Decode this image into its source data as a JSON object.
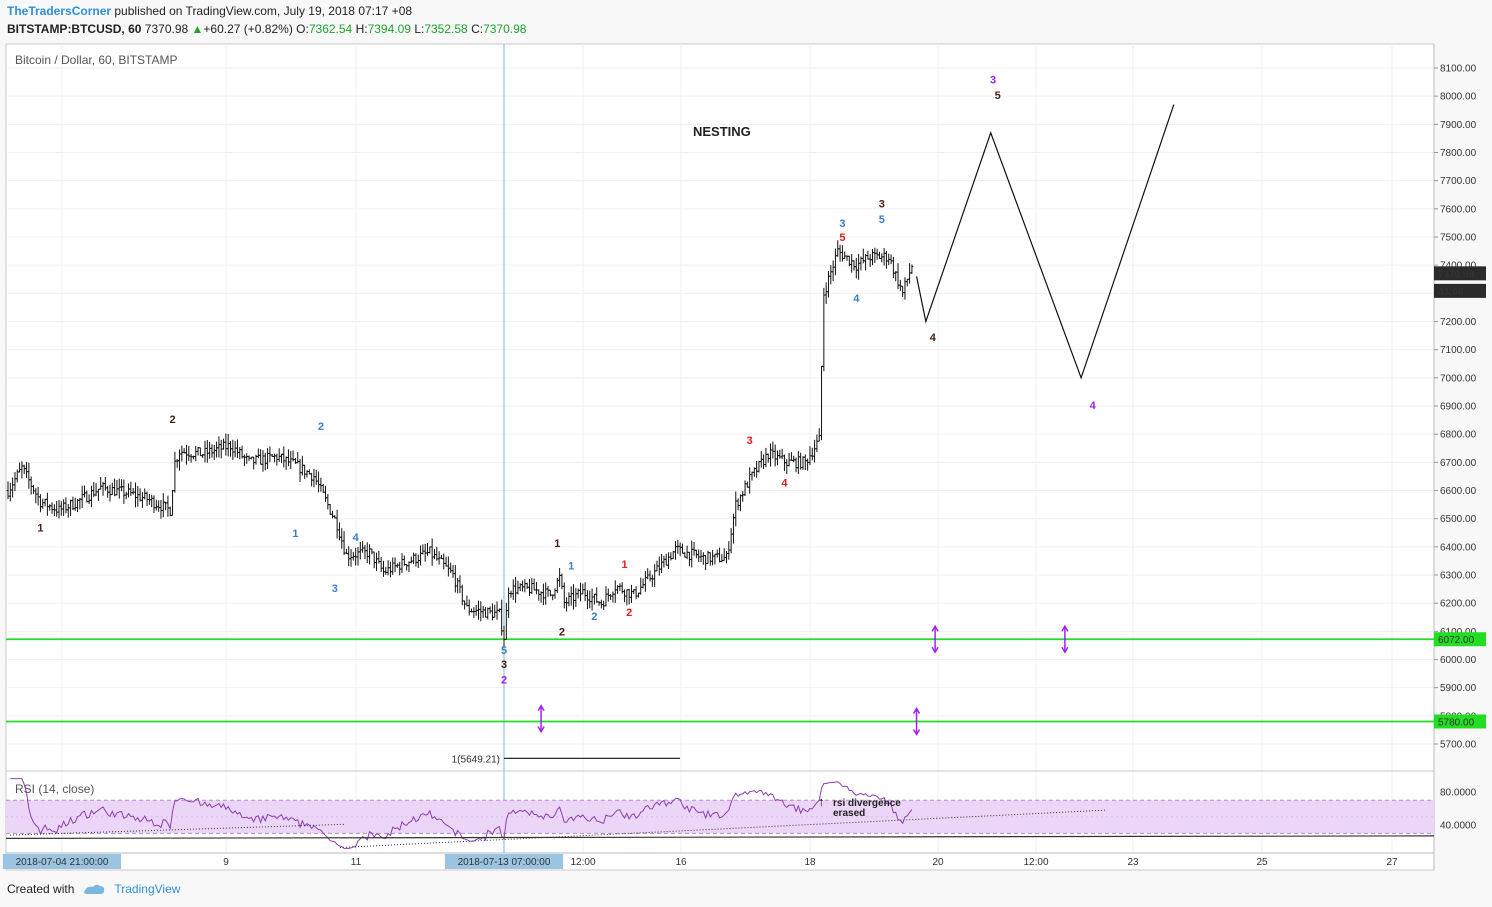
{
  "header": {
    "author": "TheTradersCorner",
    "published": " published on TradingView.com, July 19, 2018 07:17 +08",
    "symbol": "BITSTAMP:BTCUSD, 60",
    "last": "7370.98",
    "change_arrow": "▲",
    "change": "+60.27 (+0.82%)",
    "o_label": "O:",
    "o": "7362.54",
    "h_label": "H:",
    "h": "7394.09",
    "l_label": "L:",
    "l": "7352.58",
    "c_label": "C:",
    "c": "7370.98"
  },
  "footer": {
    "created_with": "Created with",
    "brand": "TradingView"
  },
  "colors": {
    "bg": "#ffffff",
    "grid": "#f0f0f0",
    "support": "#22dd22",
    "purple": "#a020f0",
    "brown": "#4a1c0c",
    "blue": "#3a7dc9",
    "red": "#e0201e",
    "rsi_fill": "#ecd6f7",
    "rsi_line": "#8b3fb0",
    "price_box": "#2a2a2a"
  },
  "chart_data": [
    {
      "type": "bar",
      "panel": "price",
      "title": "Bitcoin / Dollar, 60, BITSTAMP",
      "annotation_title": "NESTING",
      "ylim": [
        5650,
        8150
      ],
      "yticks": [
        "8100.00",
        "8000.00",
        "7900.00",
        "7800.00",
        "7700.00",
        "7600.00",
        "7500.00",
        "7400.00",
        "7300.00",
        "7200.00",
        "7100.00",
        "7000.00",
        "6900.00",
        "6800.00",
        "6700.00",
        "6600.00",
        "6500.00",
        "6400.00",
        "6300.00",
        "6200.00",
        "6100.00",
        "6000.00",
        "5900.00",
        "5800.00",
        "5700.00"
      ],
      "xticks": [
        {
          "label": "2018-07-04 21:00:00",
          "highlight": true
        },
        {
          "label": "9"
        },
        {
          "label": "11"
        },
        {
          "label": "2018-07-13 07:00:00",
          "highlight": true
        },
        {
          "label": "12:00"
        },
        {
          "label": "16"
        },
        {
          "label": "18"
        },
        {
          "label": "20"
        },
        {
          "label": "12:00"
        },
        {
          "label": "23"
        },
        {
          "label": "25"
        },
        {
          "label": "27"
        }
      ],
      "price_path_hint": "hourly OHLC bars from 2018-07-04 to 2018-07-19",
      "anchors": [
        {
          "t": 0,
          "p": 6600
        },
        {
          "t": 6,
          "p": 6680
        },
        {
          "t": 14,
          "p": 6560
        },
        {
          "t": 22,
          "p": 6530
        },
        {
          "t": 30,
          "p": 6560
        },
        {
          "t": 40,
          "p": 6610
        },
        {
          "t": 52,
          "p": 6590
        },
        {
          "t": 60,
          "p": 6570
        },
        {
          "t": 70,
          "p": 6530
        },
        {
          "t": 72,
          "p": 6700
        },
        {
          "t": 74,
          "p": 6740
        },
        {
          "t": 84,
          "p": 6730
        },
        {
          "t": 96,
          "p": 6760
        },
        {
          "t": 104,
          "p": 6700
        },
        {
          "t": 116,
          "p": 6720
        },
        {
          "t": 124,
          "p": 6690
        },
        {
          "t": 132,
          "p": 6650
        },
        {
          "t": 142,
          "p": 6480
        },
        {
          "t": 146,
          "p": 6370
        },
        {
          "t": 156,
          "p": 6380
        },
        {
          "t": 162,
          "p": 6310
        },
        {
          "t": 170,
          "p": 6340
        },
        {
          "t": 182,
          "p": 6380
        },
        {
          "t": 192,
          "p": 6300
        },
        {
          "t": 198,
          "p": 6180
        },
        {
          "t": 212,
          "p": 6160
        },
        {
          "t": 214,
          "p": 6080
        },
        {
          "t": 216,
          "p": 6250
        },
        {
          "t": 226,
          "p": 6250
        },
        {
          "t": 234,
          "p": 6230
        },
        {
          "t": 238,
          "p": 6290
        },
        {
          "t": 240,
          "p": 6200
        },
        {
          "t": 248,
          "p": 6240
        },
        {
          "t": 256,
          "p": 6200
        },
        {
          "t": 262,
          "p": 6260
        },
        {
          "t": 270,
          "p": 6230
        },
        {
          "t": 278,
          "p": 6300
        },
        {
          "t": 288,
          "p": 6390
        },
        {
          "t": 300,
          "p": 6360
        },
        {
          "t": 310,
          "p": 6360
        },
        {
          "t": 314,
          "p": 6550
        },
        {
          "t": 320,
          "p": 6640
        },
        {
          "t": 328,
          "p": 6730
        },
        {
          "t": 336,
          "p": 6700
        },
        {
          "t": 344,
          "p": 6700
        },
        {
          "t": 350,
          "p": 6780
        },
        {
          "t": 352,
          "p": 7300
        },
        {
          "t": 358,
          "p": 7450
        },
        {
          "t": 366,
          "p": 7400
        },
        {
          "t": 372,
          "p": 7430
        },
        {
          "t": 380,
          "p": 7430
        },
        {
          "t": 386,
          "p": 7300
        },
        {
          "t": 390,
          "p": 7400
        }
      ],
      "support_lines": [
        {
          "value": 6072.0,
          "label": "6072.00"
        },
        {
          "value": 5780.0,
          "label": "5780.00"
        }
      ],
      "price_labels": [
        {
          "value": 7370.98,
          "label": "7370.98"
        },
        {
          "value": 7330,
          "label": "43:08"
        }
      ],
      "fib_label": "1(5649.21)",
      "fib_value": 5649.21,
      "projection": [
        {
          "t": 392,
          "p": 7360
        },
        {
          "t": 396,
          "p": 7200
        },
        {
          "t": 424,
          "p": 7870
        },
        {
          "t": 463,
          "p": 7000
        },
        {
          "t": 503,
          "p": 7970
        }
      ],
      "wave_labels": [
        {
          "text": "1",
          "t": 14,
          "p": 6455,
          "color": "brown"
        },
        {
          "text": "2",
          "t": 71,
          "p": 6840,
          "color": "brown"
        },
        {
          "text": "1",
          "t": 124,
          "p": 6435,
          "color": "blue"
        },
        {
          "text": "2",
          "t": 135,
          "p": 6815,
          "color": "blue"
        },
        {
          "text": "3",
          "t": 141,
          "p": 6240,
          "color": "blue"
        },
        {
          "text": "4",
          "t": 150,
          "p": 6420,
          "color": "blue"
        },
        {
          "text": "5",
          "t": 214,
          "p": 6020,
          "color": "blue"
        },
        {
          "text": "3",
          "t": 214,
          "p": 5970,
          "color": "brown"
        },
        {
          "text": "2",
          "t": 214,
          "p": 5915,
          "color": "purple"
        },
        {
          "text": "1",
          "t": 237,
          "p": 6400,
          "color": "brown"
        },
        {
          "text": "1",
          "t": 243,
          "p": 6320,
          "color": "blue"
        },
        {
          "text": "2",
          "t": 239,
          "p": 6085,
          "color": "brown"
        },
        {
          "text": "2",
          "t": 253,
          "p": 6140,
          "color": "blue"
        },
        {
          "text": "1",
          "t": 266,
          "p": 6325,
          "color": "red"
        },
        {
          "text": "2",
          "t": 268,
          "p": 6155,
          "color": "red"
        },
        {
          "text": "3",
          "t": 320,
          "p": 6765,
          "color": "red"
        },
        {
          "text": "4",
          "t": 335,
          "p": 6615,
          "color": "red"
        },
        {
          "text": "3",
          "t": 360,
          "p": 7535,
          "color": "blue"
        },
        {
          "text": "5",
          "t": 360,
          "p": 7485,
          "color": "red"
        },
        {
          "text": "4",
          "t": 366,
          "p": 7270,
          "color": "blue"
        },
        {
          "text": "3",
          "t": 377,
          "p": 7605,
          "color": "brown"
        },
        {
          "text": "5",
          "t": 377,
          "p": 7550,
          "color": "blue"
        },
        {
          "text": "4",
          "t": 399,
          "p": 7130,
          "color": "brown"
        },
        {
          "text": "3",
          "t": 425,
          "p": 8045,
          "color": "purple"
        },
        {
          "text": "5",
          "t": 427,
          "p": 7990,
          "color": "brown"
        },
        {
          "text": "4",
          "t": 468,
          "p": 6890,
          "color": "purple"
        }
      ],
      "arrows": [
        {
          "t": 230,
          "p": 5790
        },
        {
          "t": 392,
          "p": 5780
        },
        {
          "t": 400,
          "p": 6072
        },
        {
          "t": 456,
          "p": 6072
        }
      ]
    },
    {
      "type": "line",
      "panel": "rsi",
      "title": "RSI (14, close)",
      "ylim": [
        10,
        98
      ],
      "yticks": [
        "80.0000",
        "40.0000"
      ],
      "band": [
        30,
        70
      ],
      "annotation": "rsi divergence erased",
      "annotation_line1": "rsi divergence",
      "annotation_line2": "erased"
    }
  ]
}
